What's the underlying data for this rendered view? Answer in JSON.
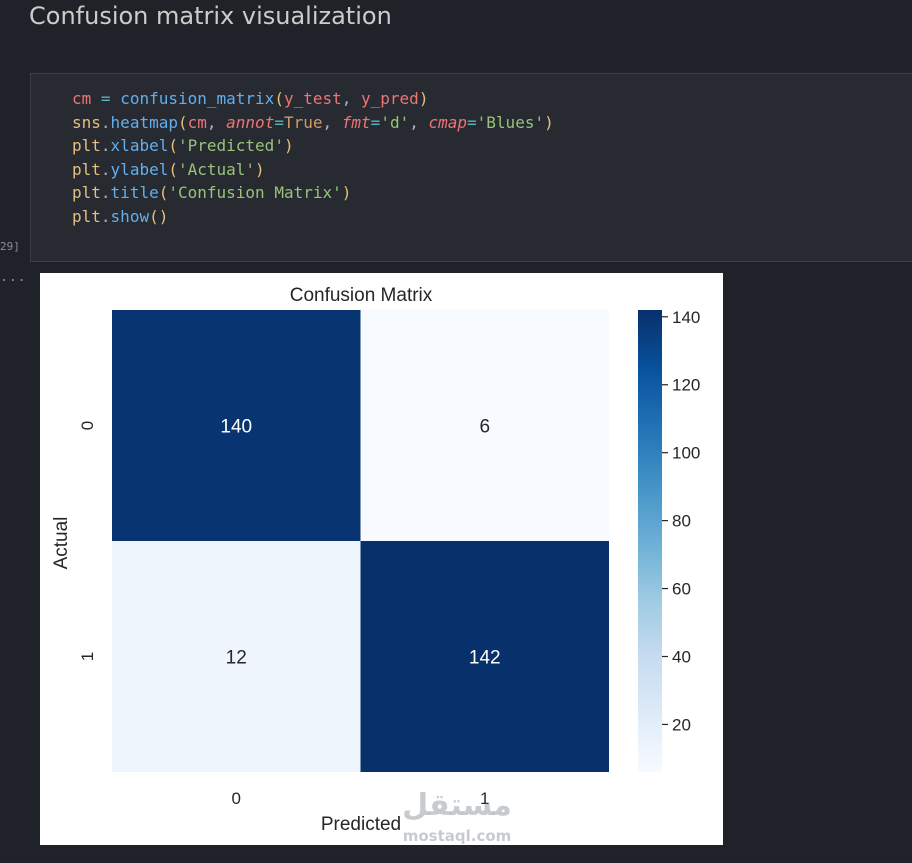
{
  "section": {
    "heading": "Confusion matrix visualization"
  },
  "code_cell": {
    "execution_count": "29]",
    "lines": [
      [
        {
          "t": "cm",
          "c": "tok-var"
        },
        {
          "t": " ",
          "c": "tok-punc"
        },
        {
          "t": "=",
          "c": "tok-op"
        },
        {
          "t": " ",
          "c": "tok-punc"
        },
        {
          "t": "confusion_matrix",
          "c": "tok-fn"
        },
        {
          "t": "(",
          "c": "tok-paren"
        },
        {
          "t": "y_test",
          "c": "tok-var"
        },
        {
          "t": ", ",
          "c": "tok-punc"
        },
        {
          "t": "y_pred",
          "c": "tok-var"
        },
        {
          "t": ")",
          "c": "tok-paren"
        }
      ],
      [
        {
          "t": "sns",
          "c": "tok-obj"
        },
        {
          "t": ".",
          "c": "tok-punc"
        },
        {
          "t": "heatmap",
          "c": "tok-fn"
        },
        {
          "t": "(",
          "c": "tok-paren"
        },
        {
          "t": "cm",
          "c": "tok-var"
        },
        {
          "t": ", ",
          "c": "tok-punc"
        },
        {
          "t": "annot",
          "c": "tok-kw"
        },
        {
          "t": "=",
          "c": "tok-op"
        },
        {
          "t": "True",
          "c": "tok-const"
        },
        {
          "t": ", ",
          "c": "tok-punc"
        },
        {
          "t": "fmt",
          "c": "tok-kw"
        },
        {
          "t": "=",
          "c": "tok-op"
        },
        {
          "t": "'d'",
          "c": "tok-str"
        },
        {
          "t": ", ",
          "c": "tok-punc"
        },
        {
          "t": "cmap",
          "c": "tok-kw"
        },
        {
          "t": "=",
          "c": "tok-op"
        },
        {
          "t": "'Blues'",
          "c": "tok-str"
        },
        {
          "t": ")",
          "c": "tok-paren"
        }
      ],
      [
        {
          "t": "plt",
          "c": "tok-obj"
        },
        {
          "t": ".",
          "c": "tok-punc"
        },
        {
          "t": "xlabel",
          "c": "tok-fn"
        },
        {
          "t": "(",
          "c": "tok-paren"
        },
        {
          "t": "'Predicted'",
          "c": "tok-str"
        },
        {
          "t": ")",
          "c": "tok-paren"
        }
      ],
      [
        {
          "t": "plt",
          "c": "tok-obj"
        },
        {
          "t": ".",
          "c": "tok-punc"
        },
        {
          "t": "ylabel",
          "c": "tok-fn"
        },
        {
          "t": "(",
          "c": "tok-paren"
        },
        {
          "t": "'Actual'",
          "c": "tok-str"
        },
        {
          "t": ")",
          "c": "tok-paren"
        }
      ],
      [
        {
          "t": "plt",
          "c": "tok-obj"
        },
        {
          "t": ".",
          "c": "tok-punc"
        },
        {
          "t": "title",
          "c": "tok-fn"
        },
        {
          "t": "(",
          "c": "tok-paren"
        },
        {
          "t": "'Confusion Matrix'",
          "c": "tok-str"
        },
        {
          "t": ")",
          "c": "tok-paren"
        }
      ],
      [
        {
          "t": "plt",
          "c": "tok-obj"
        },
        {
          "t": ".",
          "c": "tok-punc"
        },
        {
          "t": "show",
          "c": "tok-fn"
        },
        {
          "t": "()",
          "c": "tok-paren"
        }
      ]
    ]
  },
  "output": {
    "indicator": "..."
  },
  "chart_data": {
    "type": "heatmap",
    "title": "Confusion Matrix",
    "xlabel": "Predicted",
    "ylabel": "Actual",
    "x_categories": [
      "0",
      "1"
    ],
    "y_categories": [
      "0",
      "1"
    ],
    "values": [
      [
        140,
        6
      ],
      [
        12,
        142
      ]
    ],
    "colormap": "Blues",
    "colorbar": {
      "range": [
        6,
        142
      ],
      "ticks": [
        20,
        40,
        60,
        80,
        100,
        120,
        140
      ]
    }
  },
  "watermark": {
    "text_arabic": "مستقل",
    "text_latin": "mostaql.com"
  }
}
